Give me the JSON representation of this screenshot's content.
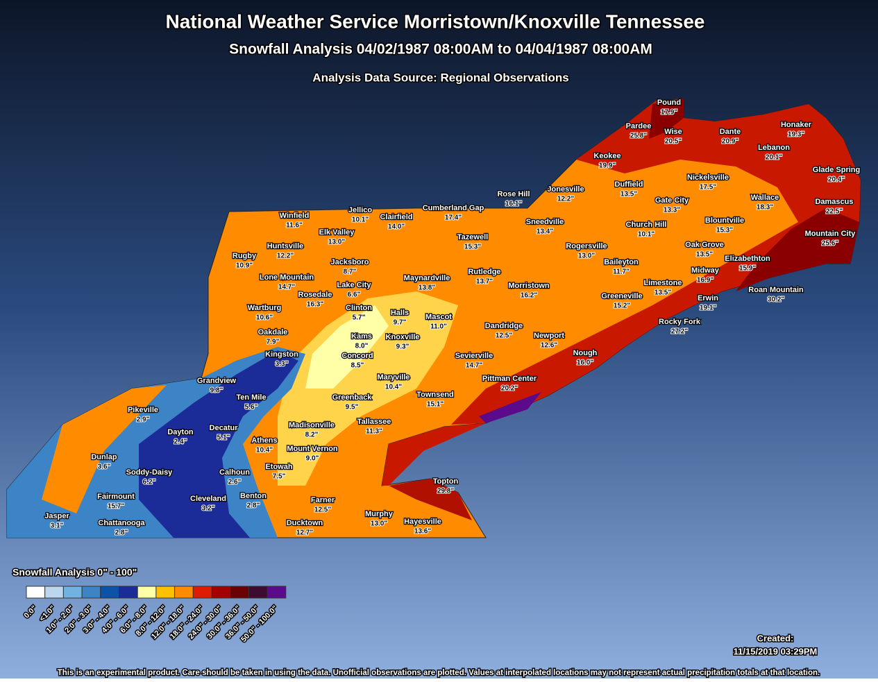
{
  "header": {
    "title": "National Weather Service Morristown/Knoxville Tennessee",
    "subtitle": "Snowfall Analysis 04/02/1987 08:00AM to 04/04/1987 08:00AM",
    "source": "Analysis Data Source: Regional Observations"
  },
  "stations": [
    {
      "name": "Pound",
      "value": "17.9\""
    },
    {
      "name": "Pardee",
      "value": "25.8\""
    },
    {
      "name": "Wise",
      "value": "20.5\""
    },
    {
      "name": "Dante",
      "value": "20.9\""
    },
    {
      "name": "Honaker",
      "value": "19.3\""
    },
    {
      "name": "Lebanon",
      "value": "20.1\""
    },
    {
      "name": "Keokee",
      "value": "19.9\""
    },
    {
      "name": "Glade Spring",
      "value": "20.4\""
    },
    {
      "name": "Nickelsville",
      "value": "17.5\""
    },
    {
      "name": "Duffield",
      "value": "13.5\""
    },
    {
      "name": "Rose Hill",
      "value": "16.1\""
    },
    {
      "name": "Jonesville",
      "value": "12.2\""
    },
    {
      "name": "Wallace",
      "value": "18.3\""
    },
    {
      "name": "Gate City",
      "value": "13.3\""
    },
    {
      "name": "Damascus",
      "value": "22.5\""
    },
    {
      "name": "Cumberland Gap",
      "value": "17.4\""
    },
    {
      "name": "Jellico",
      "value": "10.1\""
    },
    {
      "name": "Clairfield",
      "value": "14.0\""
    },
    {
      "name": "Winfield",
      "value": "11.6\""
    },
    {
      "name": "Sneedville",
      "value": "13.4\""
    },
    {
      "name": "Blountville",
      "value": "15.3\""
    },
    {
      "name": "Church Hill",
      "value": "10.1\""
    },
    {
      "name": "Elk Valley",
      "value": "13.0\""
    },
    {
      "name": "Mountain City",
      "value": "25.6\""
    },
    {
      "name": "Tazewell",
      "value": "15.3\""
    },
    {
      "name": "Oak Grove",
      "value": "13.5\""
    },
    {
      "name": "Huntsville",
      "value": "12.2\""
    },
    {
      "name": "Rogersville",
      "value": "13.0\""
    },
    {
      "name": "Rugby",
      "value": "10.9\""
    },
    {
      "name": "Elizabethton",
      "value": "15.9\""
    },
    {
      "name": "Jacksboro",
      "value": "8.7\""
    },
    {
      "name": "Baileyton",
      "value": "11.7\""
    },
    {
      "name": "Rutledge",
      "value": "13.7\""
    },
    {
      "name": "Midway",
      "value": "16.9\""
    },
    {
      "name": "Lone Mountain",
      "value": "14.7\""
    },
    {
      "name": "Maynardville",
      "value": "13.8\""
    },
    {
      "name": "Lake City",
      "value": "6.6\""
    },
    {
      "name": "Morristown",
      "value": "16.2\""
    },
    {
      "name": "Limestone",
      "value": "13.5\""
    },
    {
      "name": "Roan Mountain",
      "value": "30.2\""
    },
    {
      "name": "Rosedale",
      "value": "16.3\""
    },
    {
      "name": "Greeneville",
      "value": "15.2\""
    },
    {
      "name": "Erwin",
      "value": "19.1\""
    },
    {
      "name": "Wartburg",
      "value": "10.6\""
    },
    {
      "name": "Clinton",
      "value": "5.7\""
    },
    {
      "name": "Halls",
      "value": "9.7\""
    },
    {
      "name": "Mascot",
      "value": "11.0\""
    },
    {
      "name": "Rocky Fork",
      "value": "27.2\""
    },
    {
      "name": "Dandridge",
      "value": "12.5\""
    },
    {
      "name": "Oakdale",
      "value": "7.9\""
    },
    {
      "name": "Kams",
      "value": "8.0\""
    },
    {
      "name": "Knoxville",
      "value": "9.3\""
    },
    {
      "name": "Newport",
      "value": "12.6\""
    },
    {
      "name": "Nough",
      "value": "16.0\""
    },
    {
      "name": "Kingston",
      "value": "3.3\""
    },
    {
      "name": "Concord",
      "value": "8.5\""
    },
    {
      "name": "Sevierville",
      "value": "14.7\""
    },
    {
      "name": "Grandview",
      "value": "9.8\""
    },
    {
      "name": "Maryville",
      "value": "10.4\""
    },
    {
      "name": "Pittman Center",
      "value": "20.2\""
    },
    {
      "name": "Ten Mile",
      "value": "5.6\""
    },
    {
      "name": "Greenback",
      "value": "9.5\""
    },
    {
      "name": "Townsend",
      "value": "15.1\""
    },
    {
      "name": "Pikeville",
      "value": "2.9\""
    },
    {
      "name": "Tallassee",
      "value": "11.3\""
    },
    {
      "name": "Madisonville",
      "value": "8.2\""
    },
    {
      "name": "Dayton",
      "value": "2.4\""
    },
    {
      "name": "Decatur",
      "value": "5.1\""
    },
    {
      "name": "Athens",
      "value": "10.4\""
    },
    {
      "name": "Mount Vernon",
      "value": "9.0\""
    },
    {
      "name": "Dunlap",
      "value": "3.6\""
    },
    {
      "name": "Soddy-Daisy",
      "value": "6.2\""
    },
    {
      "name": "Calhoun",
      "value": "2.6\""
    },
    {
      "name": "Etowah",
      "value": "7.5\""
    },
    {
      "name": "Topton",
      "value": "29.8\""
    },
    {
      "name": "Benton",
      "value": "2.8\""
    },
    {
      "name": "Fairmount",
      "value": "15.7\""
    },
    {
      "name": "Cleveland",
      "value": "3.2\""
    },
    {
      "name": "Farner",
      "value": "12.5\""
    },
    {
      "name": "Jasper",
      "value": "3.1\""
    },
    {
      "name": "Murphy",
      "value": "13.0\""
    },
    {
      "name": "Chattanooga",
      "value": "2.8\""
    },
    {
      "name": "Ducktown",
      "value": "12.7\""
    },
    {
      "name": "Hayesville",
      "value": "13.6\""
    }
  ],
  "legend": {
    "title": "Snowfall Analysis 0\" - 100\"",
    "items": [
      {
        "label": "0.0\"",
        "color": "#ffffff"
      },
      {
        "label": "<1.0\"",
        "color": "#bcd6ec"
      },
      {
        "label": "1.0\" - 2.0\"",
        "color": "#72b2de"
      },
      {
        "label": "2.0\" - 3.0\"",
        "color": "#3c84c6"
      },
      {
        "label": "3.0\" - 4.0\"",
        "color": "#0c52a8"
      },
      {
        "label": "4.0\" - 6.0\"",
        "color": "#1b2b98"
      },
      {
        "label": "6.0\" - 8.0\"",
        "color": "#ffffa8"
      },
      {
        "label": "8.0\" - 12.0\"",
        "color": "#ffc000"
      },
      {
        "label": "12.0\" - 18.0\"",
        "color": "#ff8c00"
      },
      {
        "label": "18.0\" - 24.0\"",
        "color": "#e01c00"
      },
      {
        "label": "24.0\" - 30.0\"",
        "color": "#a40000"
      },
      {
        "label": "30.0\" - 36.0\"",
        "color": "#6c0000"
      },
      {
        "label": "36.0\" - 50.0\"",
        "color": "#3e0c30"
      },
      {
        "label": "50.0\" - 100.0\"",
        "color": "#5c0a8c"
      }
    ]
  },
  "created": {
    "label": "Created:",
    "date": "11/15/2019 03:29PM"
  },
  "footer": "This is an experimental product. Care should be taken in using the data. Unofficial observations are plotted. Values at interpolated locations may not represent actual precipitation totals at that location."
}
